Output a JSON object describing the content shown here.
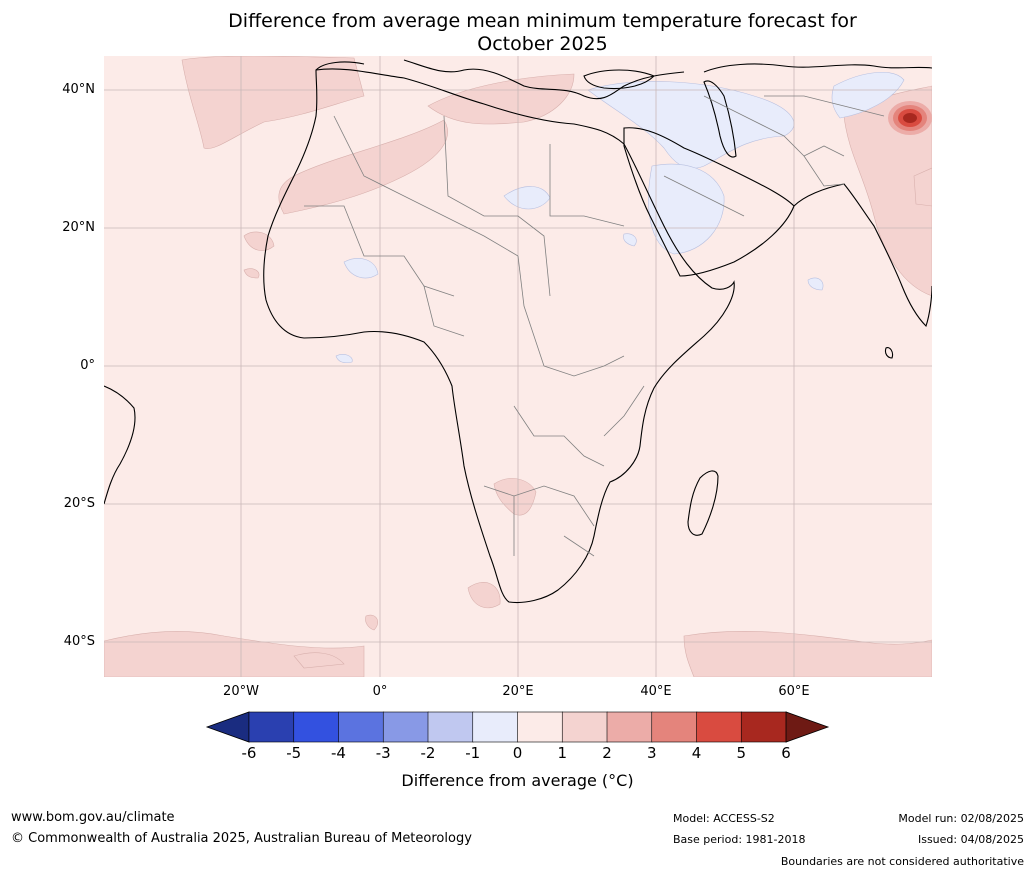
{
  "title_line1": "Difference from average mean minimum temperature forecast for",
  "title_line2": "October 2025",
  "lat_labels": [
    "40°N",
    "20°N",
    "0°",
    "20°S",
    "40°S"
  ],
  "lon_labels": [
    "20°W",
    "0°",
    "20°E",
    "40°E",
    "60°E"
  ],
  "colorbar": {
    "label": "Difference from average ($^\\circ$C)",
    "label_display": "Difference from average (°C)",
    "ticks": [
      "-6",
      "-5",
      "-4",
      "-3",
      "-2",
      "-1",
      "0",
      "1",
      "2",
      "3",
      "4",
      "5",
      "6"
    ],
    "colors": [
      "#1a2c80",
      "#2a40b0",
      "#3351e0",
      "#5b73e0",
      "#8899e6",
      "#c0c8f0",
      "#e8ecfb",
      "#fcebe8",
      "#f4d3d0",
      "#ecaca8",
      "#e4847c",
      "#d94b40",
      "#a8281f",
      "#6e1a14"
    ]
  },
  "map_colors": {
    "background": "#fcebe8",
    "warm_patch": "#f4d3d0",
    "cool_patch": "#e8ecfb",
    "hot_core": "#a8281f",
    "coast": "#000000",
    "border": "#808080",
    "grid": "#c8b8b8"
  },
  "footer": {
    "website": "www.bom.gov.au/climate",
    "copyright": "© Commonwealth of Australia 2025, Australian Bureau of Meteorology",
    "model": "Model: ACCESS-S2",
    "base_period": "Base period: 1981-2018",
    "model_run": "Model run: 02/08/2025",
    "issued": "Issued: 04/08/2025",
    "disclaimer": "Boundaries are not considered authoritative"
  }
}
